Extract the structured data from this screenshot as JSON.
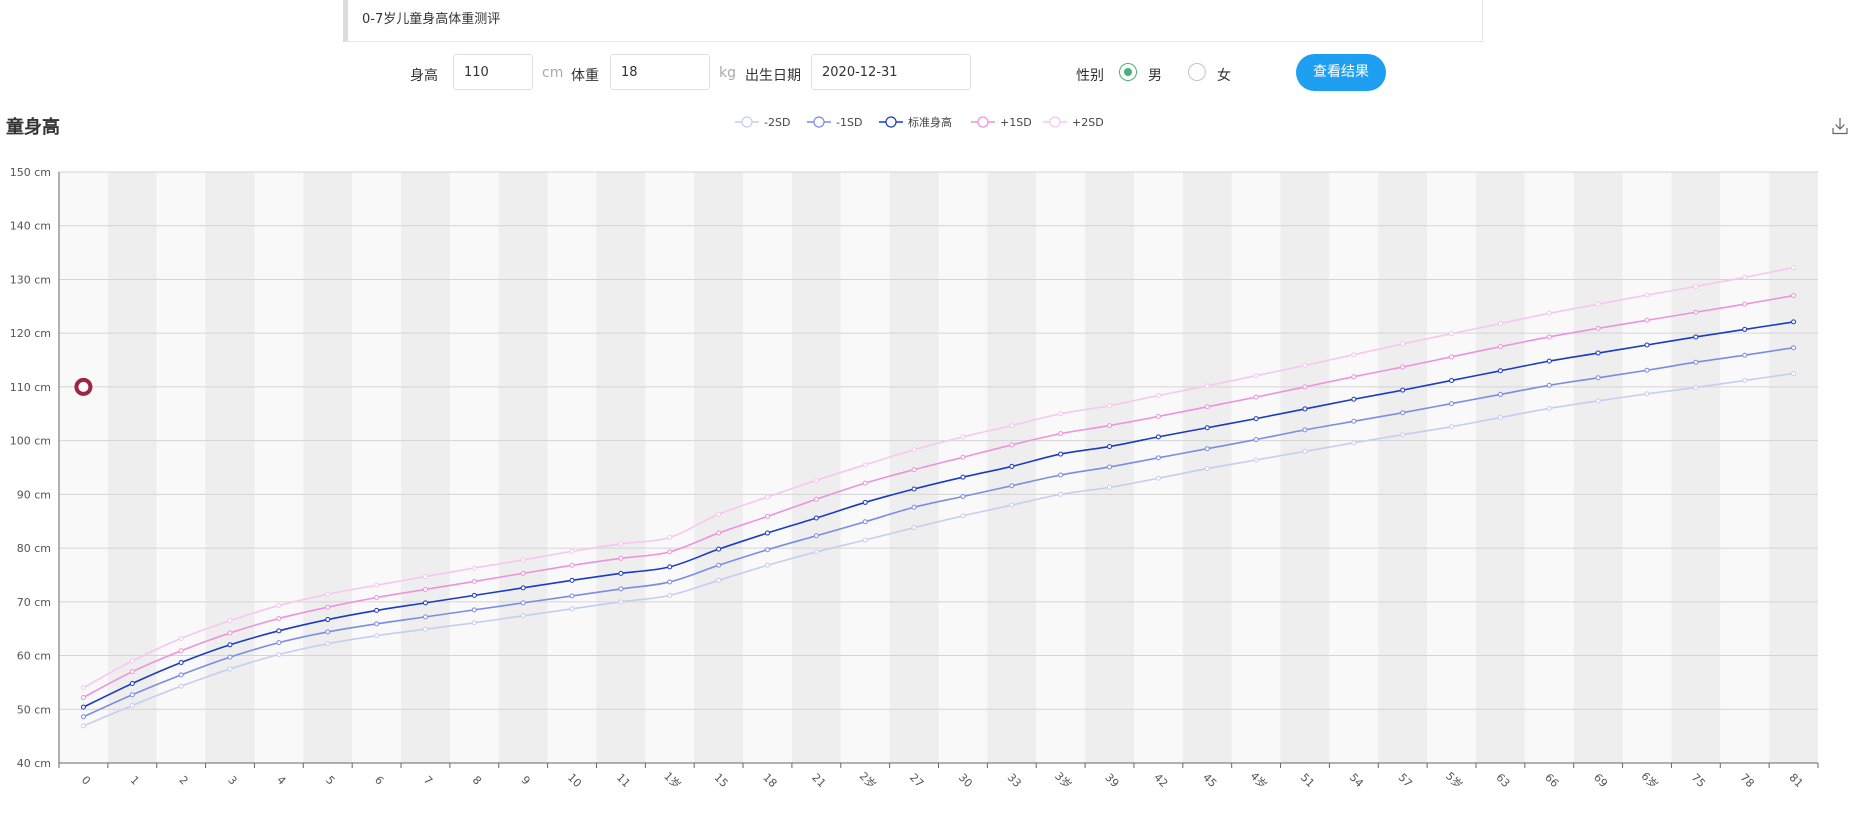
{
  "header": {
    "title": "0-7岁儿童身高体重测评"
  },
  "form": {
    "height_label": "身高",
    "height_value": "110",
    "height_unit": "cm",
    "weight_label": "体重",
    "weight_value": "18",
    "weight_unit": "kg",
    "birth_label": "出生日期",
    "birth_value": "2020-12-31",
    "gender_label": "性别",
    "gender_options": [
      "男",
      "女"
    ],
    "gender_selected": "男",
    "submit_label": "查看结果"
  },
  "chart_data": {
    "type": "line",
    "title": "童身高",
    "y_unit": "cm",
    "ylim": [
      40,
      150
    ],
    "y_ticks": [
      40,
      50,
      60,
      70,
      80,
      90,
      100,
      110,
      120,
      130,
      140,
      150
    ],
    "categories": [
      "0",
      "1",
      "2",
      "3",
      "4",
      "5",
      "6",
      "7",
      "8",
      "9",
      "10",
      "11",
      "1岁",
      "15",
      "18",
      "21",
      "2岁",
      "27",
      "30",
      "33",
      "3岁",
      "39",
      "42",
      "45",
      "4岁",
      "51",
      "54",
      "57",
      "5岁",
      "63",
      "66",
      "69",
      "6岁",
      "75",
      "78",
      "81"
    ],
    "legend_position": "top-center",
    "alternating_band_colors": [
      "#f9f9f9",
      "#eeeeee"
    ],
    "series": [
      {
        "name": "-2SD",
        "color": "#c5cdf2",
        "values": [
          46.9,
          50.7,
          54.3,
          57.5,
          60.2,
          62.2,
          63.7,
          64.9,
          66.1,
          67.4,
          68.7,
          70.0,
          71.2,
          74.0,
          76.8,
          79.3,
          81.5,
          83.8,
          86.0,
          88.0,
          90.0,
          91.3,
          93.0,
          94.8,
          96.4,
          98.0,
          99.6,
          101.1,
          102.6,
          104.3,
          106.0,
          107.4,
          108.7,
          109.9,
          111.2,
          112.5
        ]
      },
      {
        "name": "-1SD",
        "color": "#7b8de3",
        "values": [
          48.6,
          52.7,
          56.4,
          59.7,
          62.4,
          64.4,
          65.9,
          67.2,
          68.5,
          69.8,
          71.1,
          72.4,
          73.7,
          76.8,
          79.7,
          82.3,
          84.9,
          87.6,
          89.6,
          91.6,
          93.6,
          95.1,
          96.8,
          98.5,
          100.2,
          102.0,
          103.6,
          105.2,
          106.9,
          108.6,
          110.3,
          111.7,
          113.1,
          114.6,
          115.9,
          117.3
        ]
      },
      {
        "name": "标准身高",
        "color": "#1a3bc2",
        "values": [
          50.4,
          54.8,
          58.7,
          62.0,
          64.6,
          66.7,
          68.4,
          69.8,
          71.2,
          72.6,
          74.0,
          75.3,
          76.5,
          79.8,
          82.8,
          85.6,
          88.5,
          91.0,
          93.2,
          95.2,
          97.5,
          98.9,
          100.7,
          102.4,
          104.1,
          105.9,
          107.7,
          109.4,
          111.2,
          113.0,
          114.8,
          116.3,
          117.8,
          119.3,
          120.7,
          122.1
        ]
      },
      {
        "name": "+1SD",
        "color": "#ec93dd",
        "values": [
          52.2,
          57.0,
          60.9,
          64.2,
          66.9,
          69.0,
          70.8,
          72.3,
          73.8,
          75.3,
          76.8,
          78.1,
          79.3,
          82.8,
          85.9,
          89.1,
          92.1,
          94.6,
          96.9,
          99.2,
          101.3,
          102.8,
          104.5,
          106.3,
          108.1,
          110.0,
          111.9,
          113.7,
          115.6,
          117.5,
          119.3,
          120.9,
          122.4,
          123.9,
          125.4,
          127.0
        ]
      },
      {
        "name": "+2SD",
        "color": "#f7c6f1",
        "values": [
          54.0,
          59.0,
          63.2,
          66.5,
          69.3,
          71.4,
          73.1,
          74.7,
          76.3,
          77.8,
          79.4,
          80.8,
          82.0,
          86.3,
          89.5,
          92.6,
          95.5,
          98.3,
          100.7,
          102.8,
          105.0,
          106.5,
          108.4,
          110.2,
          112.1,
          114.0,
          116.0,
          118.0,
          119.9,
          121.8,
          123.7,
          125.4,
          127.1,
          128.7,
          130.4,
          132.2
        ]
      }
    ],
    "marker": {
      "x": "0",
      "y": 110,
      "color": "#9c2740"
    }
  },
  "icons": {
    "download": "download-icon"
  }
}
